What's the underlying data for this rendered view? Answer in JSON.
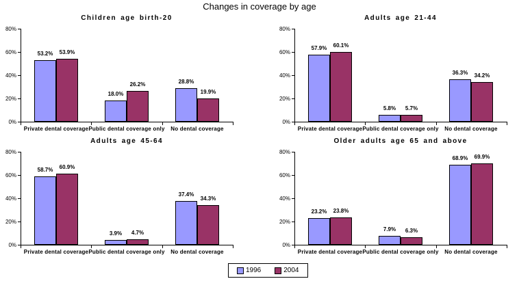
{
  "title": "Changes in coverage by age",
  "legend": {
    "position": "bottom-center",
    "items": [
      {
        "label": "1996",
        "color": "#9999FF"
      },
      {
        "label": "2004",
        "color": "#993366"
      }
    ]
  },
  "chart_data": [
    {
      "type": "bar",
      "title": "Children age birth-20",
      "categories": [
        "Private dental coverage",
        "Public dental coverage only",
        "No dental coverage"
      ],
      "series": [
        {
          "name": "1996",
          "color": "#9999FF",
          "values": [
            53.2,
            18.0,
            28.8
          ]
        },
        {
          "name": "2004",
          "color": "#993366",
          "values": [
            53.9,
            26.2,
            19.9
          ]
        }
      ],
      "xlabel": "",
      "ylabel": "",
      "ylim": [
        0,
        80
      ],
      "ytick_labels": [
        "0%",
        "20%",
        "40%",
        "60%",
        "80%"
      ],
      "grid": false,
      "data_label_format": "0.0%"
    },
    {
      "type": "bar",
      "title": "Adults age 21-44",
      "categories": [
        "Private dental coverage",
        "Public dental coverage only",
        "No dental coverage"
      ],
      "series": [
        {
          "name": "1996",
          "color": "#9999FF",
          "values": [
            57.9,
            5.8,
            36.3
          ]
        },
        {
          "name": "2004",
          "color": "#993366",
          "values": [
            60.1,
            5.7,
            34.2
          ]
        }
      ],
      "xlabel": "",
      "ylabel": "",
      "ylim": [
        0,
        80
      ],
      "ytick_labels": [
        "0%",
        "20%",
        "40%",
        "60%",
        "80%"
      ],
      "grid": false,
      "data_label_format": "0.0%"
    },
    {
      "type": "bar",
      "title": "Adults age 45-64",
      "categories": [
        "Private dental coverage",
        "Public dental coverage only",
        "No dental coverage"
      ],
      "series": [
        {
          "name": "1996",
          "color": "#9999FF",
          "values": [
            58.7,
            3.9,
            37.4
          ]
        },
        {
          "name": "2004",
          "color": "#993366",
          "values": [
            60.9,
            4.7,
            34.3
          ]
        }
      ],
      "xlabel": "",
      "ylabel": "",
      "ylim": [
        0,
        80
      ],
      "ytick_labels": [
        "0%",
        "20%",
        "40%",
        "60%",
        "80%"
      ],
      "grid": false,
      "data_label_format": "0.0%"
    },
    {
      "type": "bar",
      "title": "Older adults age 65 and above",
      "categories": [
        "Private dental coverage",
        "Public dental coverage only",
        "No dental coverage"
      ],
      "series": [
        {
          "name": "1996",
          "color": "#9999FF",
          "values": [
            23.2,
            7.9,
            68.9
          ]
        },
        {
          "name": "2004",
          "color": "#993366",
          "values": [
            23.8,
            6.3,
            69.9
          ]
        }
      ],
      "xlabel": "",
      "ylabel": "",
      "ylim": [
        0,
        80
      ],
      "ytick_labels": [
        "0%",
        "20%",
        "40%",
        "60%",
        "80%"
      ],
      "grid": false,
      "data_label_format": "0.0%"
    }
  ]
}
